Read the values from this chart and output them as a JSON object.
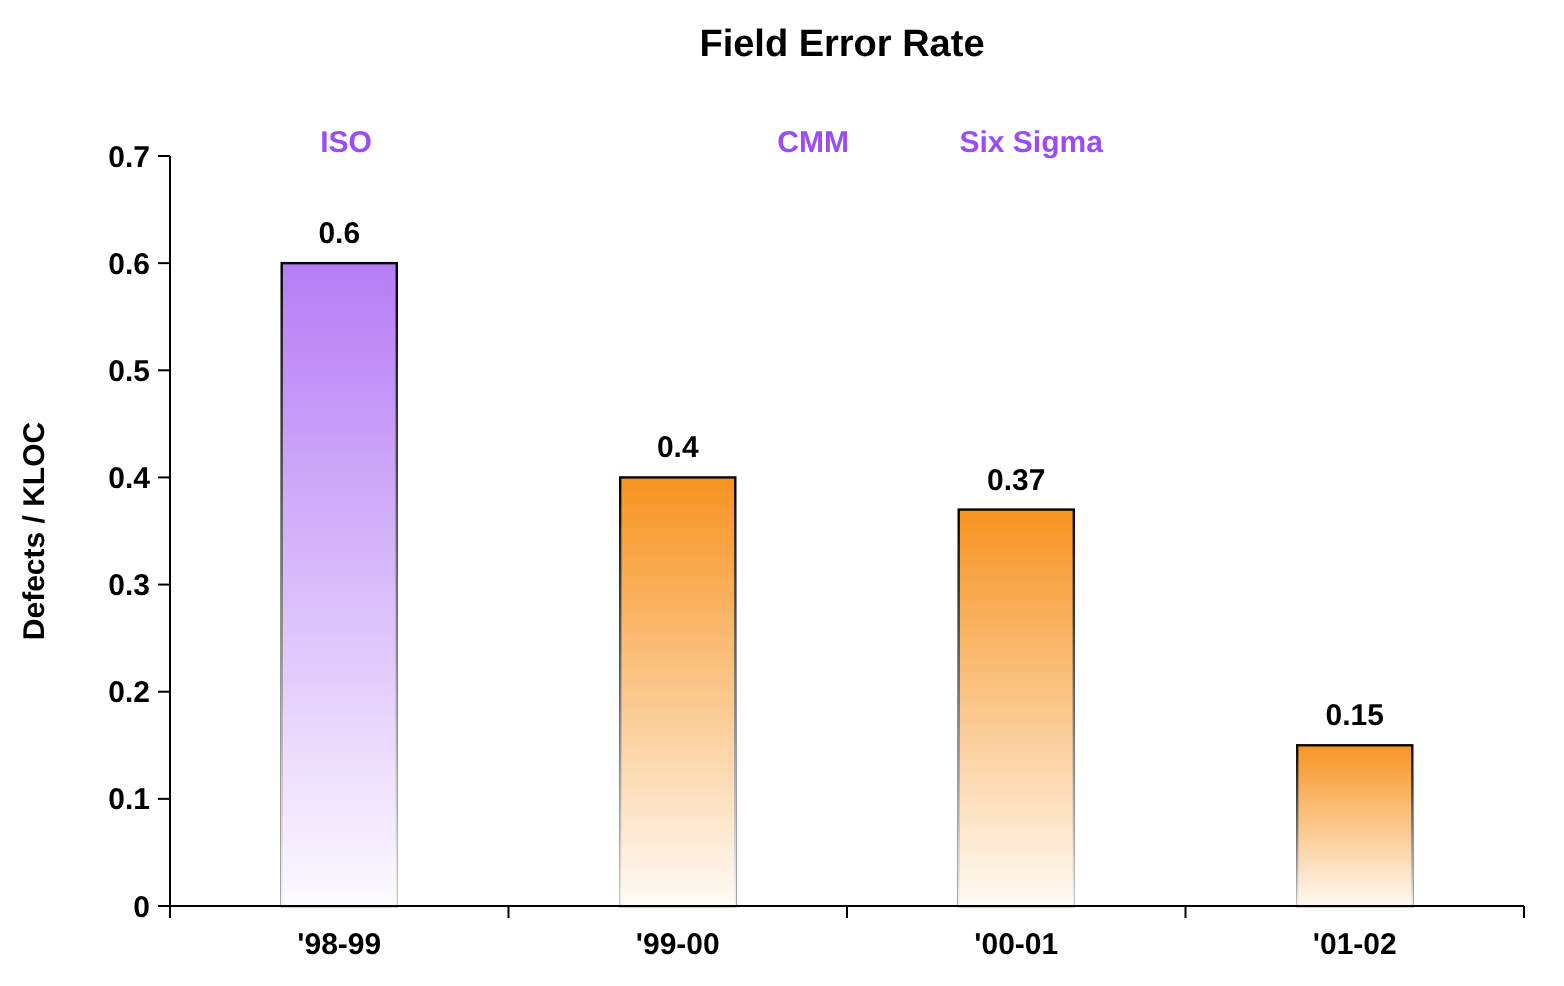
{
  "chart_data": {
    "type": "bar",
    "title": "Field Error Rate",
    "ylabel": "Defects / KLOC",
    "categories": [
      "'98-99",
      "'99-00",
      "'00-01",
      "'01-02"
    ],
    "values": [
      0.6,
      0.4,
      0.37,
      0.15
    ],
    "colors": [
      "#b57cf5",
      "#f7921e",
      "#f7921e",
      "#f7921e"
    ],
    "ylim": [
      0,
      0.7
    ],
    "yticks": [
      0,
      0.1,
      0.2,
      0.3,
      0.4,
      0.5,
      0.6,
      0.7
    ],
    "data_labels": true,
    "grid": false,
    "annotations": [
      "ISO",
      "CMM",
      "Six Sigma"
    ]
  }
}
